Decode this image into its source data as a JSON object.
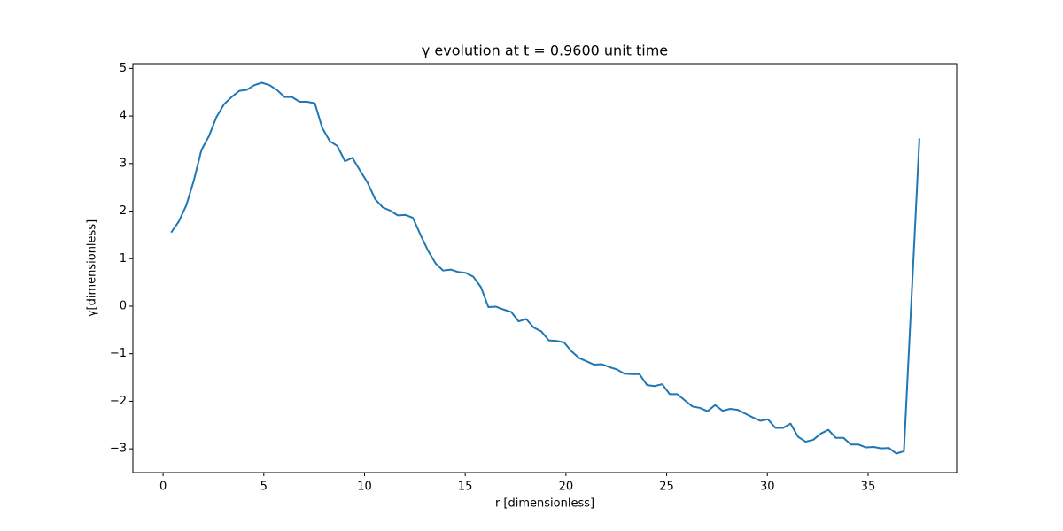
{
  "chart_data": {
    "type": "line",
    "title": "γ evolution at t = 0.9600 unit time",
    "x_label": "r [dimensionless]",
    "y_label": "γ[dimensionless]",
    "color": "#1f77b4",
    "x": [
      0.4,
      0.78,
      1.15,
      1.53,
      1.9,
      2.28,
      2.65,
      3.03,
      3.4,
      3.78,
      4.15,
      4.53,
      4.9,
      5.28,
      5.65,
      6.03,
      6.4,
      6.78,
      7.15,
      7.53,
      7.9,
      8.28,
      8.65,
      9.03,
      9.4,
      9.78,
      10.15,
      10.53,
      10.9,
      11.28,
      11.65,
      12.03,
      12.4,
      12.78,
      13.15,
      13.53,
      13.9,
      14.28,
      14.65,
      15.03,
      15.4,
      15.78,
      16.15,
      16.53,
      16.9,
      17.28,
      17.65,
      18.03,
      18.4,
      18.78,
      19.15,
      19.53,
      19.9,
      20.28,
      20.65,
      21.03,
      21.4,
      21.78,
      22.15,
      22.53,
      22.9,
      23.28,
      23.65,
      24.03,
      24.4,
      24.78,
      25.15,
      25.53,
      25.9,
      26.28,
      26.65,
      27.03,
      27.4,
      27.78,
      28.15,
      28.53,
      28.9,
      29.28,
      29.65,
      30.03,
      30.4,
      30.78,
      31.15,
      31.53,
      31.9,
      32.28,
      32.65,
      33.03,
      33.4,
      33.78,
      34.15,
      34.53,
      34.9,
      35.28,
      35.65,
      36.03,
      36.4,
      36.78,
      37.55
    ],
    "values": [
      1.55,
      1.78,
      2.12,
      2.65,
      3.28,
      3.58,
      3.98,
      4.25,
      4.4,
      4.53,
      4.55,
      4.65,
      4.7,
      4.65,
      4.55,
      4.4,
      4.4,
      4.3,
      4.3,
      4.27,
      3.75,
      3.47,
      3.37,
      3.05,
      3.12,
      2.85,
      2.6,
      2.25,
      2.08,
      2.01,
      1.91,
      1.92,
      1.86,
      1.5,
      1.17,
      0.9,
      0.75,
      0.77,
      0.72,
      0.7,
      0.62,
      0.4,
      -0.02,
      -0.01,
      -0.07,
      -0.12,
      -0.32,
      -0.27,
      -0.45,
      -0.53,
      -0.72,
      -0.73,
      -0.76,
      -0.95,
      -1.09,
      -1.16,
      -1.23,
      -1.22,
      -1.28,
      -1.33,
      -1.42,
      -1.43,
      -1.43,
      -1.66,
      -1.68,
      -1.64,
      -1.85,
      -1.85,
      -1.98,
      -2.11,
      -2.14,
      -2.21,
      -2.08,
      -2.2,
      -2.16,
      -2.18,
      -2.26,
      -2.34,
      -2.41,
      -2.38,
      -2.56,
      -2.56,
      -2.47,
      -2.75,
      -2.85,
      -2.81,
      -2.68,
      -2.6,
      -2.77,
      -2.77,
      -2.91,
      -2.91,
      -2.97,
      -2.96,
      -2.99,
      -2.98,
      -3.1,
      -3.05,
      3.53
    ],
    "xlim": [
      -1.5,
      39.4
    ],
    "ylim": [
      -3.5,
      5.1
    ],
    "xticks": [
      0,
      5,
      10,
      15,
      20,
      25,
      30,
      35
    ],
    "yticks": [
      {
        "value": -3,
        "label": "−3"
      },
      {
        "value": -2,
        "label": "−2"
      },
      {
        "value": -1,
        "label": "−1"
      },
      0,
      1,
      2,
      3,
      4,
      5
    ]
  }
}
